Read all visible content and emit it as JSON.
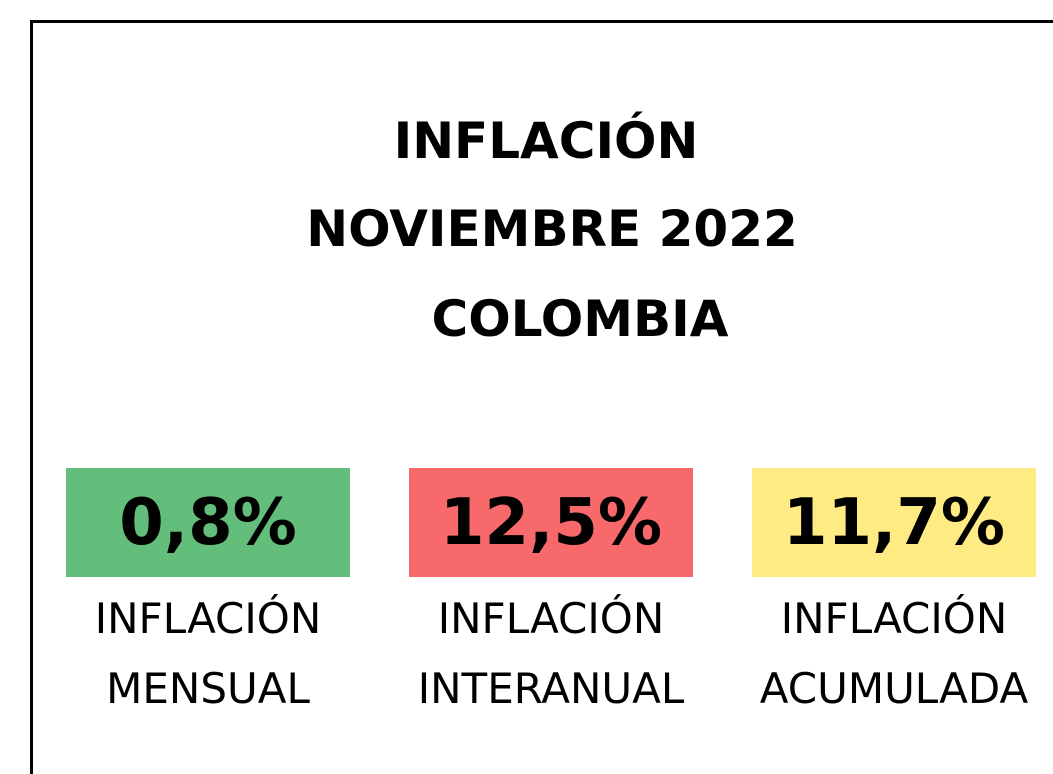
{
  "title": [
    "INFLACIÓN",
    "NOVIEMBRE 2022",
    "COLOMBIA"
  ],
  "indicators": [
    {
      "value": "0,8%",
      "label": [
        "INFLACIÓN",
        "MENSUAL"
      ],
      "color": "#63be7b"
    },
    {
      "value": "12,5%",
      "label": [
        "INFLACIÓN",
        "INTERANUAL"
      ],
      "color": "#f8696b"
    },
    {
      "value": "11,7%",
      "label": [
        "INFLACIÓN",
        "ACUMULADA"
      ],
      "color": "#ffeb84"
    }
  ]
}
